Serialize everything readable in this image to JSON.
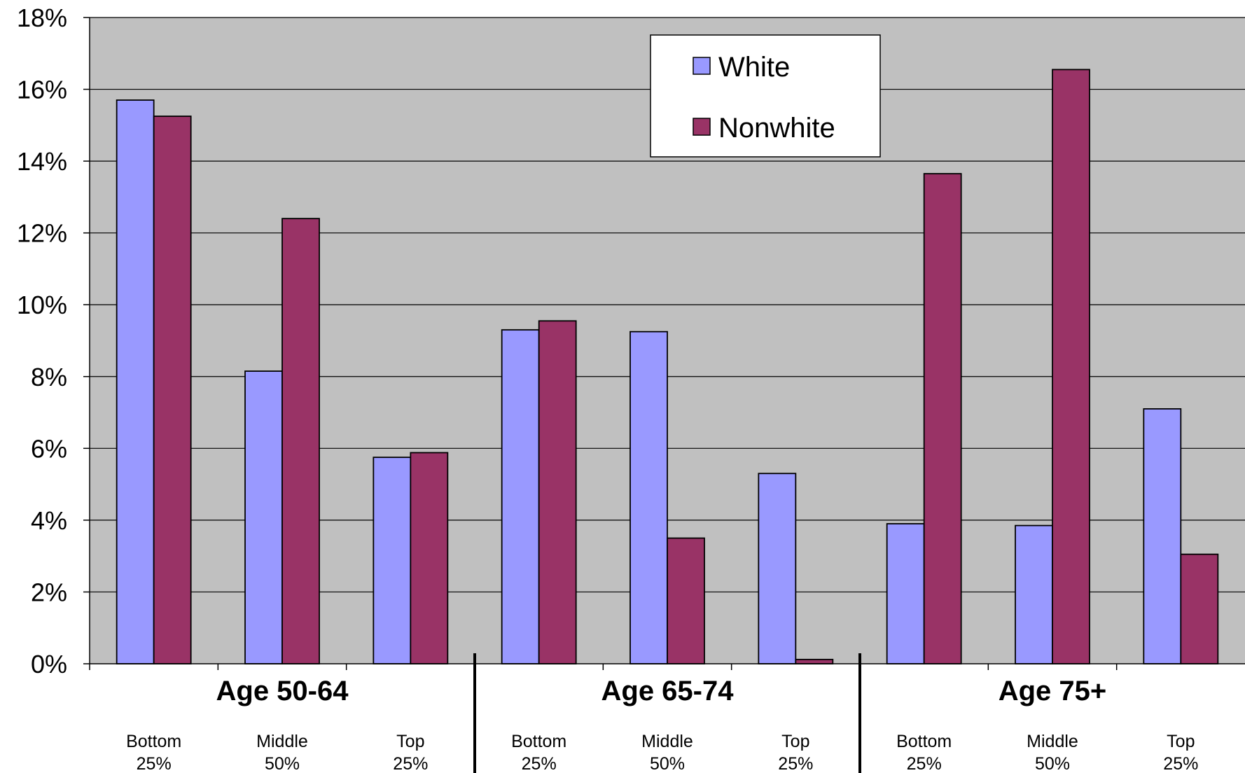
{
  "chart_data": {
    "type": "bar",
    "title": "",
    "xlabel": "",
    "ylabel": "",
    "ylim": [
      0,
      18
    ],
    "y_ticks": [
      "0%",
      "2%",
      "4%",
      "6%",
      "8%",
      "10%",
      "12%",
      "14%",
      "16%",
      "18%"
    ],
    "y_tick_values": [
      0,
      2,
      4,
      6,
      8,
      10,
      12,
      14,
      16,
      18
    ],
    "grid": true,
    "legend_position": "top-center",
    "groups": [
      {
        "label": "Age 50-64",
        "categories": [
          [
            "Bottom",
            "25%"
          ],
          [
            "Middle",
            "50%"
          ],
          [
            "Top",
            "25%"
          ]
        ]
      },
      {
        "label": "Age 65-74",
        "categories": [
          [
            "Bottom",
            "25%"
          ],
          [
            "Middle",
            "50%"
          ],
          [
            "Top",
            "25%"
          ]
        ]
      },
      {
        "label": "Age 75+",
        "categories": [
          [
            "Bottom",
            "25%"
          ],
          [
            "Middle",
            "50%"
          ],
          [
            "Top",
            "25%"
          ]
        ]
      }
    ],
    "series": [
      {
        "name": "White",
        "color": "#9999ff",
        "values": [
          15.7,
          8.15,
          5.75,
          9.3,
          9.25,
          5.3,
          3.9,
          3.85,
          7.1
        ]
      },
      {
        "name": "Nonwhite",
        "color": "#993366",
        "values": [
          15.25,
          12.4,
          5.88,
          9.55,
          3.5,
          0.12,
          13.65,
          16.55,
          3.05
        ]
      }
    ],
    "plot_background": "#c0c0c0"
  }
}
